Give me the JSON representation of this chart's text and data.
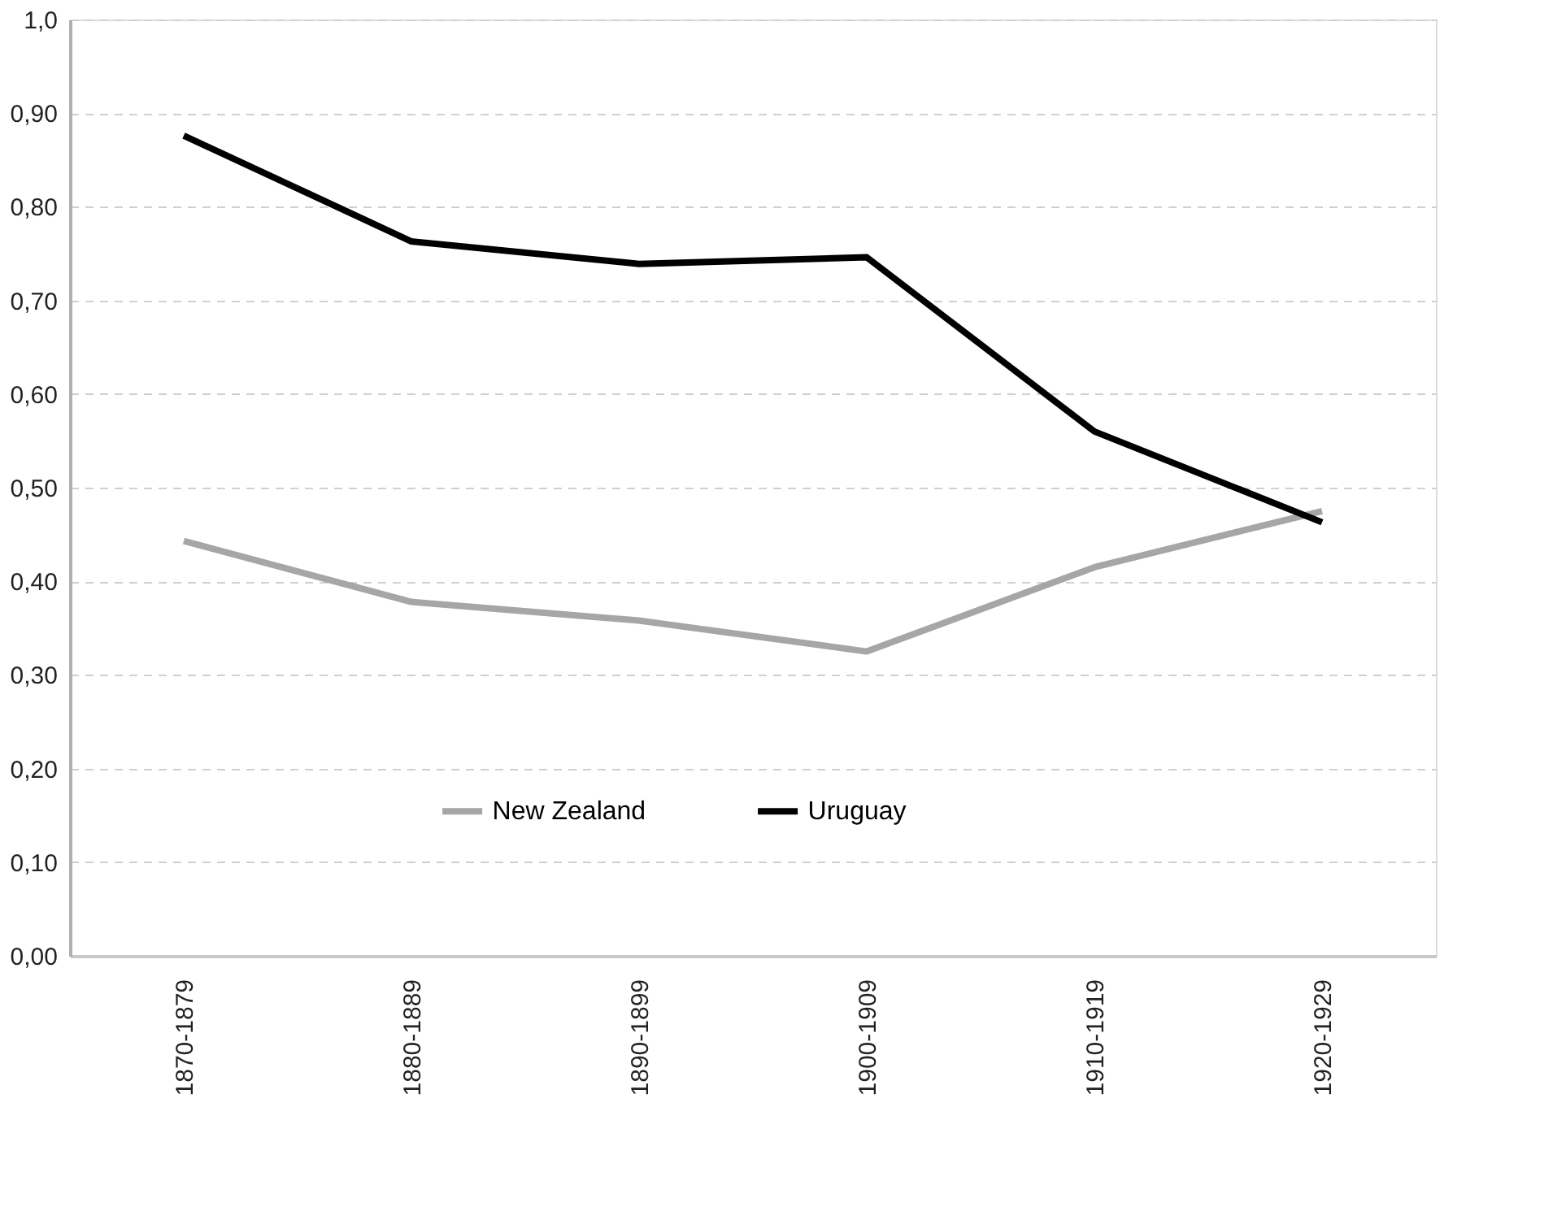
{
  "chart_data": {
    "type": "line",
    "categories": [
      "1870-1879",
      "1880-1889",
      "1890-1899",
      "1900-1909",
      "1910-1919",
      "1920-1929"
    ],
    "series": [
      {
        "name": "New Zealand",
        "color": "#a6a6a6",
        "values": [
          0.443,
          0.378,
          0.358,
          0.325,
          0.415,
          0.475
        ]
      },
      {
        "name": "Uruguay",
        "color": "#000000",
        "values": [
          0.876,
          0.763,
          0.739,
          0.746,
          0.56,
          0.463
        ]
      }
    ],
    "ylim": [
      0,
      1
    ],
    "yticks": [
      {
        "value": 0,
        "label": "0,00"
      },
      {
        "value": 0.1,
        "label": "0,10"
      },
      {
        "value": 0.2,
        "label": "0,20"
      },
      {
        "value": 0.3,
        "label": "0,30"
      },
      {
        "value": 0.4,
        "label": "0,40"
      },
      {
        "value": 0.5,
        "label": "0,50"
      },
      {
        "value": 0.6,
        "label": "0,60"
      },
      {
        "value": 0.7,
        "label": "0,70"
      },
      {
        "value": 0.8,
        "label": "0,80"
      },
      {
        "value": 0.9,
        "label": "0,90"
      },
      {
        "value": 1,
        "label": "1,0"
      }
    ],
    "grid": "y",
    "legend": "bottom",
    "marker": "none",
    "line_style": "solid"
  }
}
